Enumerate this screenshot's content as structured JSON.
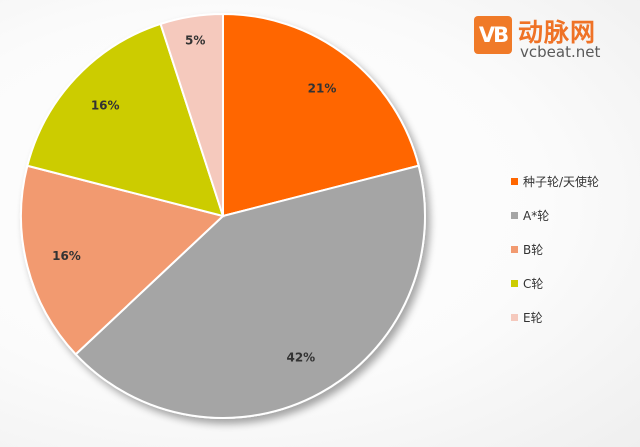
{
  "brand": {
    "mark": "VB",
    "name_cn": "动脉网",
    "domain": "vcbeat.net"
  },
  "chart_data": {
    "type": "pie",
    "categories": [
      "种子轮/天使轮",
      "A*轮",
      "B轮",
      "C轮",
      "E轮"
    ],
    "values": [
      21,
      42,
      16,
      16,
      5
    ],
    "labels": [
      "21%",
      "42%",
      "16%",
      "16%",
      "5%"
    ],
    "colors": [
      "#ff6600",
      "#a5a5a5",
      "#f29a70",
      "#cccc00",
      "#f5c9bd"
    ],
    "title": "",
    "start_angle_deg": 0,
    "direction": "clockwise",
    "legend": "right"
  }
}
